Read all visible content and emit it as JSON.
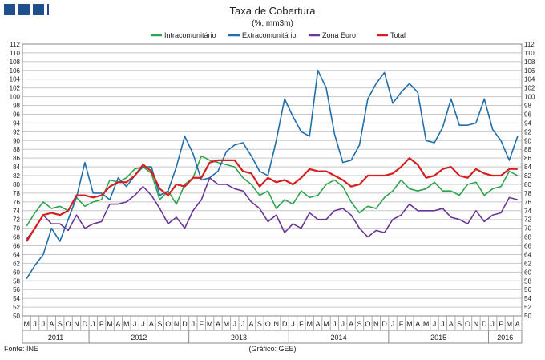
{
  "chart_data": {
    "type": "line",
    "title": "Taxa de Cobertura",
    "subtitle": "(%, mm3m)",
    "source": "Fonte: INE",
    "credit": "(Gráfico: GEE)",
    "ylim": [
      50,
      112
    ],
    "ytick_step": 2,
    "grid": true,
    "legend_position": "top",
    "colors": {
      "Intracomunitário": "#2ea44f",
      "Extracomunitário": "#1f6faa",
      "Zona Euro": "#6b3594",
      "Total": "#d42020",
      "grid": "#c8c8c8",
      "brand": "#1f4e8c"
    },
    "x": [
      "M",
      "J",
      "J",
      "A",
      "S",
      "O",
      "N",
      "D",
      "J",
      "F",
      "M",
      "A",
      "M",
      "J",
      "J",
      "A",
      "S",
      "O",
      "N",
      "D",
      "J",
      "F",
      "M",
      "A",
      "M",
      "J",
      "J",
      "A",
      "S",
      "O",
      "N",
      "D",
      "J",
      "F",
      "M",
      "A",
      "M",
      "J",
      "J",
      "A",
      "S",
      "O",
      "N",
      "D",
      "J",
      "F",
      "M",
      "A",
      "M",
      "J",
      "J",
      "A",
      "S",
      "O",
      "N",
      "D",
      "J",
      "F",
      "M",
      "A"
    ],
    "years": [
      {
        "label": "2011",
        "start": 0,
        "end": 7
      },
      {
        "label": "2012",
        "start": 8,
        "end": 19
      },
      {
        "label": "2013",
        "start": 20,
        "end": 31
      },
      {
        "label": "2014",
        "start": 32,
        "end": 43
      },
      {
        "label": "2015",
        "start": 44,
        "end": 55
      },
      {
        "label": "2016",
        "start": 56,
        "end": 59
      }
    ],
    "series": [
      {
        "name": "Intracomunitário",
        "values": [
          70.5,
          73.5,
          76,
          74.5,
          75,
          74,
          77,
          75,
          76,
          76.5,
          81,
          80.5,
          81.5,
          83.5,
          84,
          82.5,
          76.5,
          78.5,
          75.5,
          80,
          81.5,
          86.5,
          85.5,
          85,
          84.5,
          84,
          81.5,
          80,
          77.5,
          78.5,
          74.5,
          76.5,
          75.5,
          78.5,
          77,
          77.5,
          80,
          81,
          79.5,
          76,
          73.5,
          75,
          74.5,
          77,
          78.5,
          81,
          79,
          78.5,
          79,
          80.5,
          78.5,
          78.5,
          77.5,
          80,
          80.5,
          77.5,
          79,
          79.5,
          83,
          82
        ]
      },
      {
        "name": "Extracomunitário",
        "values": [
          58.5,
          61.5,
          64,
          70,
          67,
          72,
          77,
          85,
          78,
          78,
          76.5,
          81.5,
          79.5,
          82,
          84,
          84,
          77.5,
          78.5,
          84,
          91,
          87,
          81,
          81.5,
          83,
          87.5,
          89,
          89.5,
          86.5,
          83,
          82,
          90,
          99.5,
          95.5,
          92,
          91,
          106,
          102,
          91.5,
          85,
          85.5,
          89,
          99.5,
          103,
          105.5,
          98.5,
          101,
          103,
          101,
          90,
          89.5,
          93,
          99.5,
          93.5,
          93.5,
          94,
          99.5,
          92.5,
          90,
          85.5,
          91
        ]
      },
      {
        "name": "Zona Euro",
        "values": [
          67.5,
          70,
          73,
          71,
          71,
          69.5,
          73,
          70,
          71,
          71.5,
          75.5,
          75.5,
          76,
          77.5,
          79.5,
          77.5,
          74.5,
          71,
          72.5,
          70,
          74,
          76.5,
          81.5,
          80,
          80,
          79,
          78.5,
          76,
          74.5,
          71.5,
          73,
          69,
          71,
          70,
          73.5,
          72,
          72,
          74,
          74.5,
          73,
          70,
          68,
          69.5,
          69,
          72,
          73,
          75.5,
          74,
          74,
          74,
          74.5,
          72.5,
          72,
          71,
          74,
          71.5,
          73,
          73.5,
          77,
          76.5
        ]
      },
      {
        "name": "Total",
        "values": [
          67,
          70,
          73,
          73.5,
          73,
          74,
          77.5,
          77.5,
          77,
          77.5,
          79.5,
          80.5,
          80.5,
          82,
          84.5,
          83,
          79,
          77.5,
          80,
          79.5,
          81.5,
          81.5,
          85,
          85.5,
          85.5,
          85.5,
          83,
          82.5,
          79.5,
          81.5,
          80.5,
          81,
          80,
          81.5,
          83.5,
          83,
          83,
          82,
          81,
          79.5,
          80,
          82,
          82,
          82,
          82.5,
          84,
          86,
          84.5,
          81.5,
          82,
          83.5,
          84,
          82,
          81.5,
          83.5,
          82.5,
          82,
          82,
          83.5,
          83.5
        ]
      }
    ]
  }
}
